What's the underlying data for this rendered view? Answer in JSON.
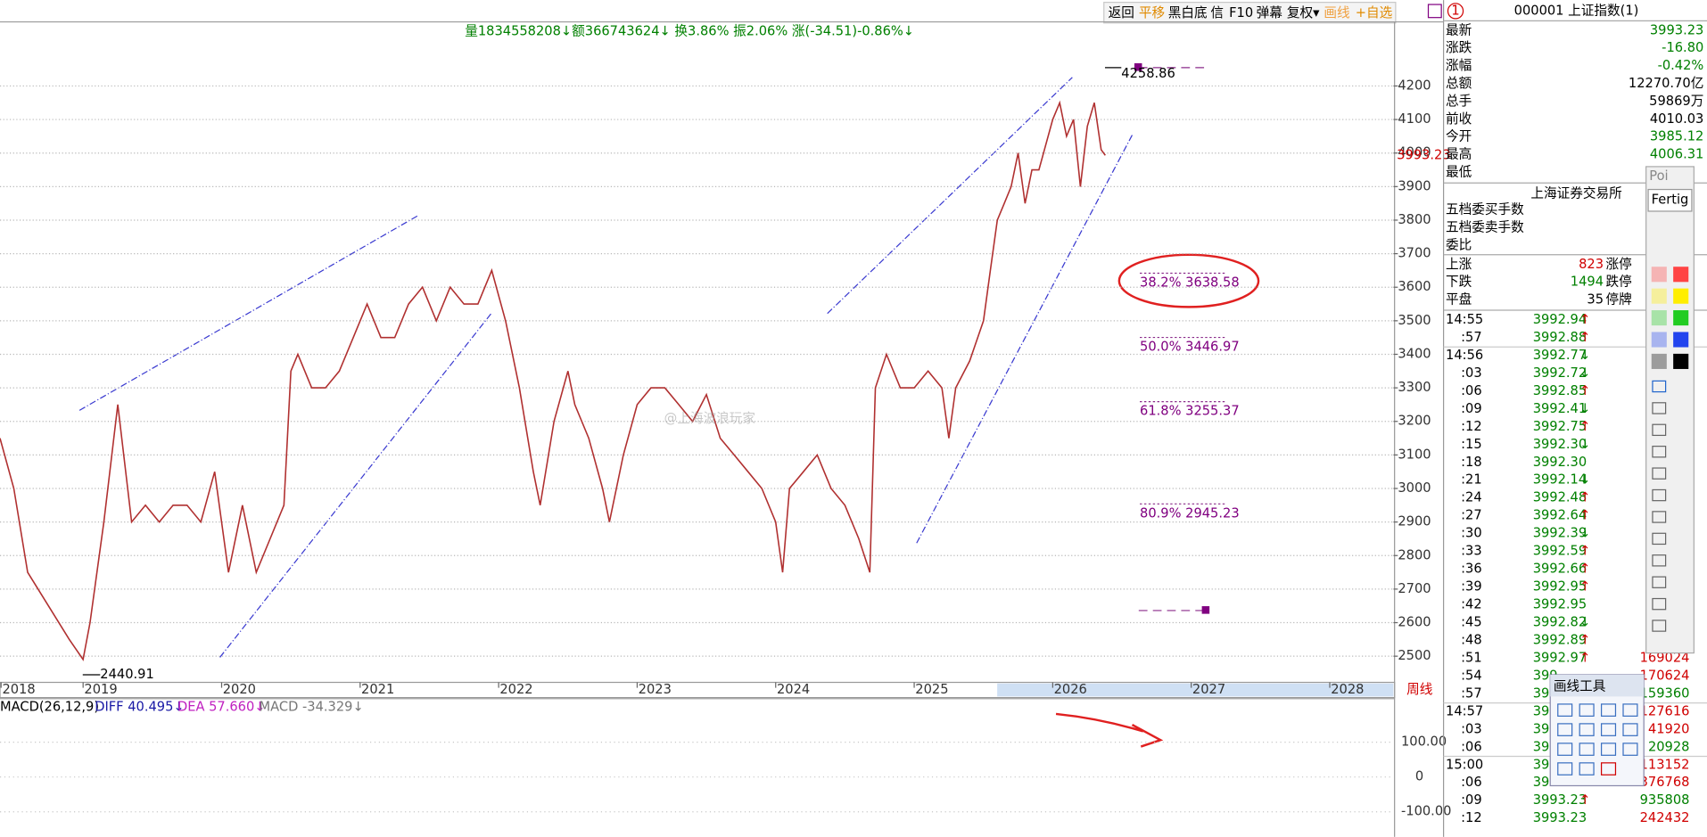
{
  "toolbar": [
    "返回",
    "平移",
    "黑白底",
    "信",
    "F10",
    "弹幕",
    "复权▾",
    "画线",
    "+自选"
  ],
  "info_line": "量1834558208↓额366743624↓ 换3.86% 振2.06% 涨(-34.51)-0.86%↓",
  "watermark": "@上海波浪玩家",
  "chart_data": [
    {
      "type": "line",
      "color": "#b03030",
      "x": [
        2018.4,
        2018.5,
        2018.6,
        2018.75,
        2018.9,
        2019.0,
        2019.05,
        2019.15,
        2019.25,
        2019.35,
        2019.45,
        2019.55,
        2019.65,
        2019.75,
        2019.85,
        2019.95,
        2020.05,
        2020.15,
        2020.25,
        2020.35,
        2020.45,
        2020.5,
        2020.55,
        2020.65,
        2020.75,
        2020.85,
        2020.95,
        2021.05,
        2021.15,
        2021.25,
        2021.35,
        2021.45,
        2021.55,
        2021.65,
        2021.75,
        2021.85,
        2021.95,
        2022.05,
        2022.15,
        2022.25,
        2022.3,
        2022.4,
        2022.5,
        2022.55,
        2022.65,
        2022.75,
        2022.8,
        2022.9,
        2023.0,
        2023.1,
        2023.2,
        2023.3,
        2023.4,
        2023.5,
        2023.6,
        2023.7,
        2023.8,
        2023.9,
        2024.0,
        2024.05,
        2024.1,
        2024.2,
        2024.3,
        2024.4,
        2024.5,
        2024.6,
        2024.68,
        2024.72,
        2024.8,
        2024.9,
        2025.0,
        2025.1,
        2025.2,
        2025.25,
        2025.3,
        2025.4,
        2025.5,
        2025.55,
        2025.6,
        2025.65,
        2025.7,
        2025.75,
        2025.8,
        2025.85,
        2025.9,
        2026.0,
        2026.05,
        2026.1,
        2026.15,
        2026.2,
        2026.25,
        2026.3,
        2026.35,
        2026.38
      ],
      "values": [
        3150,
        3000,
        2750,
        2650,
        2550,
        2490,
        2600,
        2900,
        3250,
        2900,
        2950,
        2900,
        2950,
        2950,
        2900,
        3050,
        2750,
        2950,
        2750,
        2850,
        2950,
        3350,
        3400,
        3300,
        3300,
        3350,
        3450,
        3550,
        3450,
        3450,
        3550,
        3600,
        3500,
        3600,
        3550,
        3550,
        3650,
        3500,
        3300,
        3050,
        2950,
        3200,
        3350,
        3250,
        3150,
        3000,
        2900,
        3100,
        3250,
        3300,
        3300,
        3250,
        3200,
        3280,
        3150,
        3100,
        3050,
        3000,
        2900,
        2750,
        3000,
        3050,
        3100,
        3000,
        2950,
        2850,
        2750,
        3300,
        3400,
        3300,
        3300,
        3350,
        3300,
        3150,
        3300,
        3380,
        3500,
        3650,
        3800,
        3850,
        3900,
        4000,
        3850,
        3950,
        3950,
        4100,
        4150,
        4050,
        4100,
        3900,
        4080,
        4150,
        4010,
        3993.23
      ],
      "xlim": [
        2018.4,
        2028.46
      ],
      "xticks": [
        2018,
        2019,
        2020,
        2021,
        2022,
        2023,
        2024,
        2025,
        2026,
        2027,
        2028
      ],
      "x_period_label": "周线",
      "ylim": [
        2422,
        4391
      ],
      "yticks": [
        2500,
        2600,
        2700,
        2800,
        2900,
        3000,
        3100,
        3200,
        3300,
        3400,
        3500,
        3600,
        3700,
        3800,
        3900,
        4000,
        4100,
        4200
      ],
      "last_price_label": "3993.23",
      "grid": true,
      "annotations": [
        "4258.86",
        "2440.91",
        "38.2% 3638.58",
        "50.0% 3446.97",
        "61.8% 3255.37",
        "80.9% 2945.23"
      ]
    },
    {
      "type": "indicator",
      "title": "MACD(26,12,9)",
      "indicators": [
        {
          "label": "DIFF 40.495↓",
          "color": "#1a1aa6"
        },
        {
          "label": "DEA 57.660↓",
          "color": "#c020c0"
        },
        {
          "label": "MACD -34.329↓",
          "color": "#777777"
        }
      ],
      "ylim": [
        -172,
        225
      ],
      "yticks": [
        {
          "value": 100,
          "label": "100.00"
        },
        0,
        {
          "value": -100,
          "label": "-100.00"
        }
      ]
    }
  ],
  "quote_panel": {
    "badge": "1",
    "title": "000001 上证指数(1)",
    "rows": [
      {
        "label": "最新",
        "value": "3993.23",
        "color": "#008000"
      },
      {
        "label": "涨跌",
        "value": "-16.80",
        "color": "#008000"
      },
      {
        "label": "涨幅",
        "value": "-0.42%",
        "color": "#008000"
      },
      {
        "label": "总额",
        "value": "12270.70亿",
        "color": "#000000"
      },
      {
        "label": "总手",
        "value": "59869万",
        "color": "#000000"
      },
      {
        "label": "前收",
        "value": "4010.03",
        "color": "#000000"
      },
      {
        "label": "今开",
        "value": "3985.12",
        "color": "#008000"
      },
      {
        "label": "最高",
        "value": "4006.31",
        "color": "#008000"
      },
      {
        "label": "最低"
      }
    ],
    "exchange": "上海证券交易所",
    "order_rows": [
      "五档委买手数",
      "五档委卖手数",
      "委比"
    ],
    "breadth": [
      {
        "label": "上涨",
        "value": "823",
        "tag": "涨停",
        "color": "#d00000"
      },
      {
        "label": "下跌",
        "value": "1494",
        "tag": "跌停",
        "color": "#008000"
      },
      {
        "label": "平盘",
        "value": "35",
        "tag": "停牌",
        "color": "#000000"
      }
    ],
    "ticks": [
      [
        "14:55",
        "3992.94",
        "↑"
      ],
      [
        ":57",
        "3992.88",
        "↑"
      ],
      [
        "14:56",
        "3992.77",
        "↓"
      ],
      [
        ":03",
        "3992.72",
        "↓"
      ],
      [
        ":06",
        "3992.85",
        "↑"
      ],
      [
        ":09",
        "3992.41",
        "↓"
      ],
      [
        ":12",
        "3992.75",
        "↑"
      ],
      [
        ":15",
        "3992.30",
        "↓"
      ],
      [
        ":18",
        "3992.30"
      ],
      [
        ":21",
        "3992.14",
        "↓"
      ],
      [
        ":24",
        "3992.48",
        "↑"
      ],
      [
        ":27",
        "3992.64",
        "↑"
      ],
      [
        ":30",
        "3992.39",
        "↓"
      ],
      [
        ":33",
        "3992.59",
        "↑"
      ],
      [
        ":36",
        "3992.66",
        "↑"
      ],
      [
        ":39",
        "3992.95",
        "↑"
      ],
      [
        ":42",
        "3992.95"
      ],
      [
        ":45",
        "3992.82",
        "↓"
      ],
      [
        ":48",
        "3992.89",
        "↑"
      ],
      [
        ":51",
        "3992.97",
        "↑",
        "169024"
      ],
      [
        ":54",
        "399",
        "",
        "170624"
      ],
      [
        ":57",
        "399",
        "",
        "159360"
      ],
      [
        "14:57",
        "399",
        "",
        "127616"
      ],
      [
        ":03",
        "399",
        "",
        "41920"
      ],
      [
        ":06",
        "399",
        "",
        "20928"
      ],
      [
        "15:00",
        "399",
        "",
        "113152"
      ],
      [
        ":06",
        "399",
        "",
        "376768"
      ],
      [
        ":09",
        "3993.23",
        "↑",
        "935808"
      ],
      [
        ":12",
        "3993.23",
        "",
        "242432"
      ]
    ]
  },
  "popup": {
    "title": "Poi",
    "button": "Fertig"
  },
  "draw_tools": {
    "title": "画线工具"
  }
}
